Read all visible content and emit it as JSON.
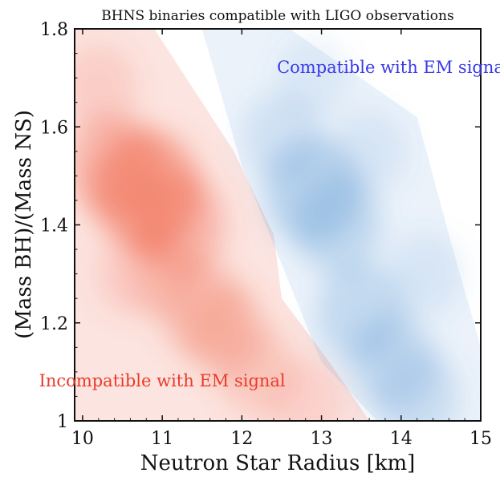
{
  "chart_data": {
    "type": "density",
    "title": "BHNS binaries compatible with LIGO observations",
    "xlabel": "Neutron Star Radius [km]",
    "ylabel": "(Mass BH)/(Mass NS)",
    "xlim": [
      9.9,
      15
    ],
    "ylim": [
      1.0,
      1.8
    ],
    "xticks": [
      10,
      11,
      12,
      13,
      14,
      15
    ],
    "xtick_labels": [
      "10",
      "11",
      "12",
      "13",
      "14",
      "15"
    ],
    "yticks": [
      1.0,
      1.2,
      1.4,
      1.6,
      1.8
    ],
    "ytick_labels": [
      "1",
      "1.2",
      "1.4",
      "1.6",
      "1.8"
    ],
    "grid": false,
    "series": [
      {
        "name": "Incompatible with EM signal",
        "color": "#ef5a3c",
        "points": [
          {
            "x": 10.8,
            "y": 1.47,
            "w": 1.0
          },
          {
            "x": 10.4,
            "y": 1.52,
            "w": 0.7
          },
          {
            "x": 11.2,
            "y": 1.4,
            "w": 0.7
          },
          {
            "x": 11.5,
            "y": 1.23,
            "w": 0.55
          },
          {
            "x": 11.8,
            "y": 1.18,
            "w": 0.5
          },
          {
            "x": 12.2,
            "y": 1.1,
            "w": 0.4
          },
          {
            "x": 10.2,
            "y": 1.68,
            "w": 0.35
          },
          {
            "x": 12.8,
            "y": 1.04,
            "w": 0.3
          },
          {
            "x": 11.0,
            "y": 1.3,
            "w": 0.4
          },
          {
            "x": 10.6,
            "y": 1.3,
            "w": 0.3
          }
        ]
      },
      {
        "name": "Compatible with EM signal",
        "color": "#5a96d2",
        "points": [
          {
            "x": 12.9,
            "y": 1.47,
            "w": 0.75
          },
          {
            "x": 13.2,
            "y": 1.4,
            "w": 0.6
          },
          {
            "x": 13.5,
            "y": 1.22,
            "w": 0.6
          },
          {
            "x": 13.9,
            "y": 1.12,
            "w": 0.55
          },
          {
            "x": 14.2,
            "y": 1.05,
            "w": 0.5
          },
          {
            "x": 12.5,
            "y": 1.58,
            "w": 0.4
          },
          {
            "x": 14.3,
            "y": 1.3,
            "w": 0.3
          },
          {
            "x": 12.9,
            "y": 1.7,
            "w": 0.25
          },
          {
            "x": 13.6,
            "y": 1.55,
            "w": 0.3
          }
        ]
      }
    ],
    "annotations": [
      {
        "text": "Compatible with EM signal",
        "x": 13.9,
        "y": 1.71,
        "color": "#3a3ae8"
      },
      {
        "text": "Incompatible with EM signal",
        "x": 11.0,
        "y": 1.07,
        "color": "#ea3b2a"
      }
    ]
  }
}
